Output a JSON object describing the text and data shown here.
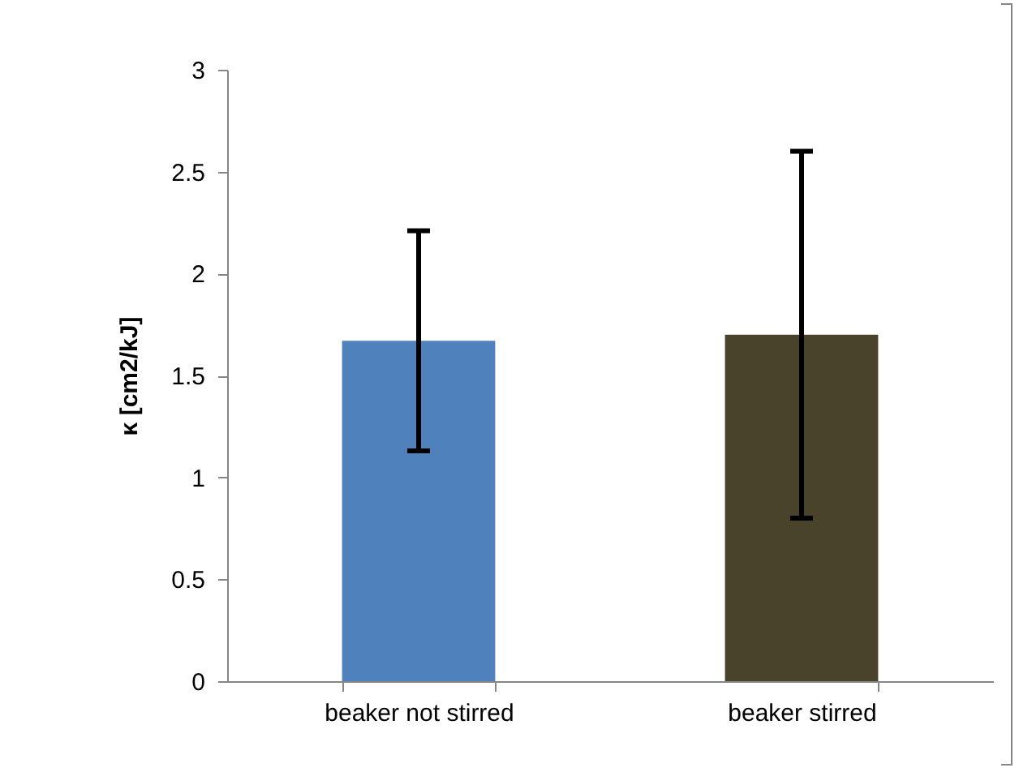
{
  "chart_data": {
    "type": "bar",
    "ylabel": "κ [cm2/kJ]",
    "categories": [
      "beaker not stirred",
      "beaker stirred"
    ],
    "values": [
      1.67,
      1.7
    ],
    "colors": [
      "#4f81bd",
      "#4a432c"
    ],
    "errors": [
      0.54,
      0.9
    ],
    "ylim": [
      0,
      3
    ],
    "yticks": [
      0,
      0.5,
      1,
      1.5,
      2,
      2.5,
      3
    ],
    "grid": false
  }
}
